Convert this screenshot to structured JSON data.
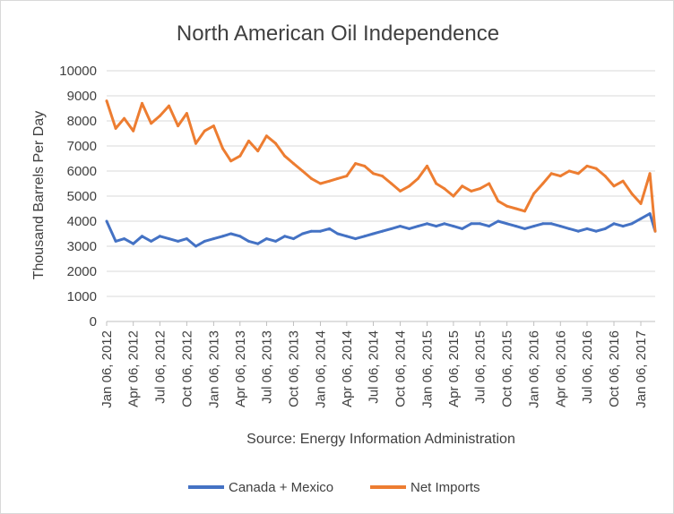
{
  "chart_data": {
    "type": "line",
    "title": "North American Oil Independence",
    "ylabel": "Thousand Barrels Per Day",
    "xlabel": "Source: Energy Information Administration",
    "ylim": [
      0,
      10000
    ],
    "y_ticks": [
      0,
      1000,
      2000,
      3000,
      4000,
      5000,
      6000,
      7000,
      8000,
      9000,
      10000
    ],
    "y_tick_labels": [
      "0",
      "1000",
      "2000",
      "3000",
      "4000",
      "5000",
      "6000",
      "7000",
      "8000",
      "9000",
      "10000"
    ],
    "x_tick_labels": [
      "Jan 06, 2012",
      "Apr 06, 2012",
      "Jul 06, 2012",
      "Oct 06, 2012",
      "Jan 06, 2013",
      "Apr 06, 2013",
      "Jul 06, 2013",
      "Oct 06, 2013",
      "Jan 06, 2014",
      "Apr 06, 2014",
      "Jul 06, 2014",
      "Oct 06, 2014",
      "Jan 06, 2015",
      "Apr 06, 2015",
      "Jul 06, 2015",
      "Oct 06, 2015",
      "Jan 06, 2016",
      "Apr 06, 2016",
      "Jul 06, 2016",
      "Oct 06, 2016",
      "Jan 06, 2017"
    ],
    "x_range": [
      "Jan 06, 2012",
      "Feb 24, 2017"
    ],
    "grid": true,
    "legend_position": "bottom",
    "series": [
      {
        "name": "Canada + Mexico",
        "color": "#4472C4",
        "x": [
          "Jan 06, 2012",
          "Feb 06, 2012",
          "Mar 06, 2012",
          "Apr 06, 2012",
          "May 06, 2012",
          "Jun 06, 2012",
          "Jul 06, 2012",
          "Aug 06, 2012",
          "Sep 06, 2012",
          "Oct 06, 2012",
          "Nov 06, 2012",
          "Dec 06, 2012",
          "Jan 06, 2013",
          "Feb 06, 2013",
          "Mar 06, 2013",
          "Apr 06, 2013",
          "May 06, 2013",
          "Jun 06, 2013",
          "Jul 06, 2013",
          "Aug 06, 2013",
          "Sep 06, 2013",
          "Oct 06, 2013",
          "Nov 06, 2013",
          "Dec 06, 2013",
          "Jan 06, 2014",
          "Feb 06, 2014",
          "Mar 06, 2014",
          "Apr 06, 2014",
          "May 06, 2014",
          "Jun 06, 2014",
          "Jul 06, 2014",
          "Aug 06, 2014",
          "Sep 06, 2014",
          "Oct 06, 2014",
          "Nov 06, 2014",
          "Dec 06, 2014",
          "Jan 06, 2015",
          "Feb 06, 2015",
          "Mar 06, 2015",
          "Apr 06, 2015",
          "May 06, 2015",
          "Jun 06, 2015",
          "Jul 06, 2015",
          "Aug 06, 2015",
          "Sep 06, 2015",
          "Oct 06, 2015",
          "Nov 06, 2015",
          "Dec 06, 2015",
          "Jan 06, 2016",
          "Feb 06, 2016",
          "Mar 06, 2016",
          "Apr 06, 2016",
          "May 06, 2016",
          "Jun 06, 2016",
          "Jul 06, 2016",
          "Aug 06, 2016",
          "Sep 06, 2016",
          "Oct 06, 2016",
          "Nov 06, 2016",
          "Dec 06, 2016",
          "Jan 06, 2017",
          "Feb 06, 2017",
          "Feb 24, 2017"
        ],
        "values": [
          4000,
          3200,
          3300,
          3100,
          3400,
          3200,
          3400,
          3300,
          3200,
          3300,
          3000,
          3200,
          3300,
          3400,
          3500,
          3400,
          3200,
          3100,
          3300,
          3200,
          3400,
          3300,
          3500,
          3600,
          3600,
          3700,
          3500,
          3400,
          3300,
          3400,
          3500,
          3600,
          3700,
          3800,
          3700,
          3800,
          3900,
          3800,
          3900,
          3800,
          3700,
          3900,
          3900,
          3800,
          4000,
          3900,
          3800,
          3700,
          3800,
          3900,
          3900,
          3800,
          3700,
          3600,
          3700,
          3600,
          3700,
          3900,
          3800,
          3900,
          4100,
          4300,
          3600
        ]
      },
      {
        "name": "Net Imports",
        "color": "#ED7D31",
        "x": [
          "Jan 06, 2012",
          "Feb 06, 2012",
          "Mar 06, 2012",
          "Apr 06, 2012",
          "May 06, 2012",
          "Jun 06, 2012",
          "Jul 06, 2012",
          "Aug 06, 2012",
          "Sep 06, 2012",
          "Oct 06, 2012",
          "Nov 06, 2012",
          "Dec 06, 2012",
          "Jan 06, 2013",
          "Feb 06, 2013",
          "Mar 06, 2013",
          "Apr 06, 2013",
          "May 06, 2013",
          "Jun 06, 2013",
          "Jul 06, 2013",
          "Aug 06, 2013",
          "Sep 06, 2013",
          "Oct 06, 2013",
          "Nov 06, 2013",
          "Dec 06, 2013",
          "Jan 06, 2014",
          "Feb 06, 2014",
          "Mar 06, 2014",
          "Apr 06, 2014",
          "May 06, 2014",
          "Jun 06, 2014",
          "Jul 06, 2014",
          "Aug 06, 2014",
          "Sep 06, 2014",
          "Oct 06, 2014",
          "Nov 06, 2014",
          "Dec 06, 2014",
          "Jan 06, 2015",
          "Feb 06, 2015",
          "Mar 06, 2015",
          "Apr 06, 2015",
          "May 06, 2015",
          "Jun 06, 2015",
          "Jul 06, 2015",
          "Aug 06, 2015",
          "Sep 06, 2015",
          "Oct 06, 2015",
          "Nov 06, 2015",
          "Dec 06, 2015",
          "Jan 06, 2016",
          "Feb 06, 2016",
          "Mar 06, 2016",
          "Apr 06, 2016",
          "May 06, 2016",
          "Jun 06, 2016",
          "Jul 06, 2016",
          "Aug 06, 2016",
          "Sep 06, 2016",
          "Oct 06, 2016",
          "Nov 06, 2016",
          "Dec 06, 2016",
          "Jan 06, 2017",
          "Feb 06, 2017",
          "Feb 24, 2017"
        ],
        "values": [
          8800,
          7700,
          8100,
          7600,
          8700,
          7900,
          8200,
          8600,
          7800,
          8300,
          7100,
          7600,
          7800,
          6900,
          6400,
          6600,
          7200,
          6800,
          7400,
          7100,
          6600,
          6300,
          6000,
          5700,
          5500,
          5600,
          5700,
          5800,
          6300,
          6200,
          5900,
          5800,
          5500,
          5200,
          5400,
          5700,
          6200,
          5500,
          5300,
          5000,
          5400,
          5200,
          5300,
          5500,
          4800,
          4600,
          4500,
          4400,
          5100,
          5500,
          5900,
          5800,
          6000,
          5900,
          6200,
          6100,
          5800,
          5400,
          5600,
          5100,
          4700,
          5900,
          3600
        ]
      }
    ]
  }
}
